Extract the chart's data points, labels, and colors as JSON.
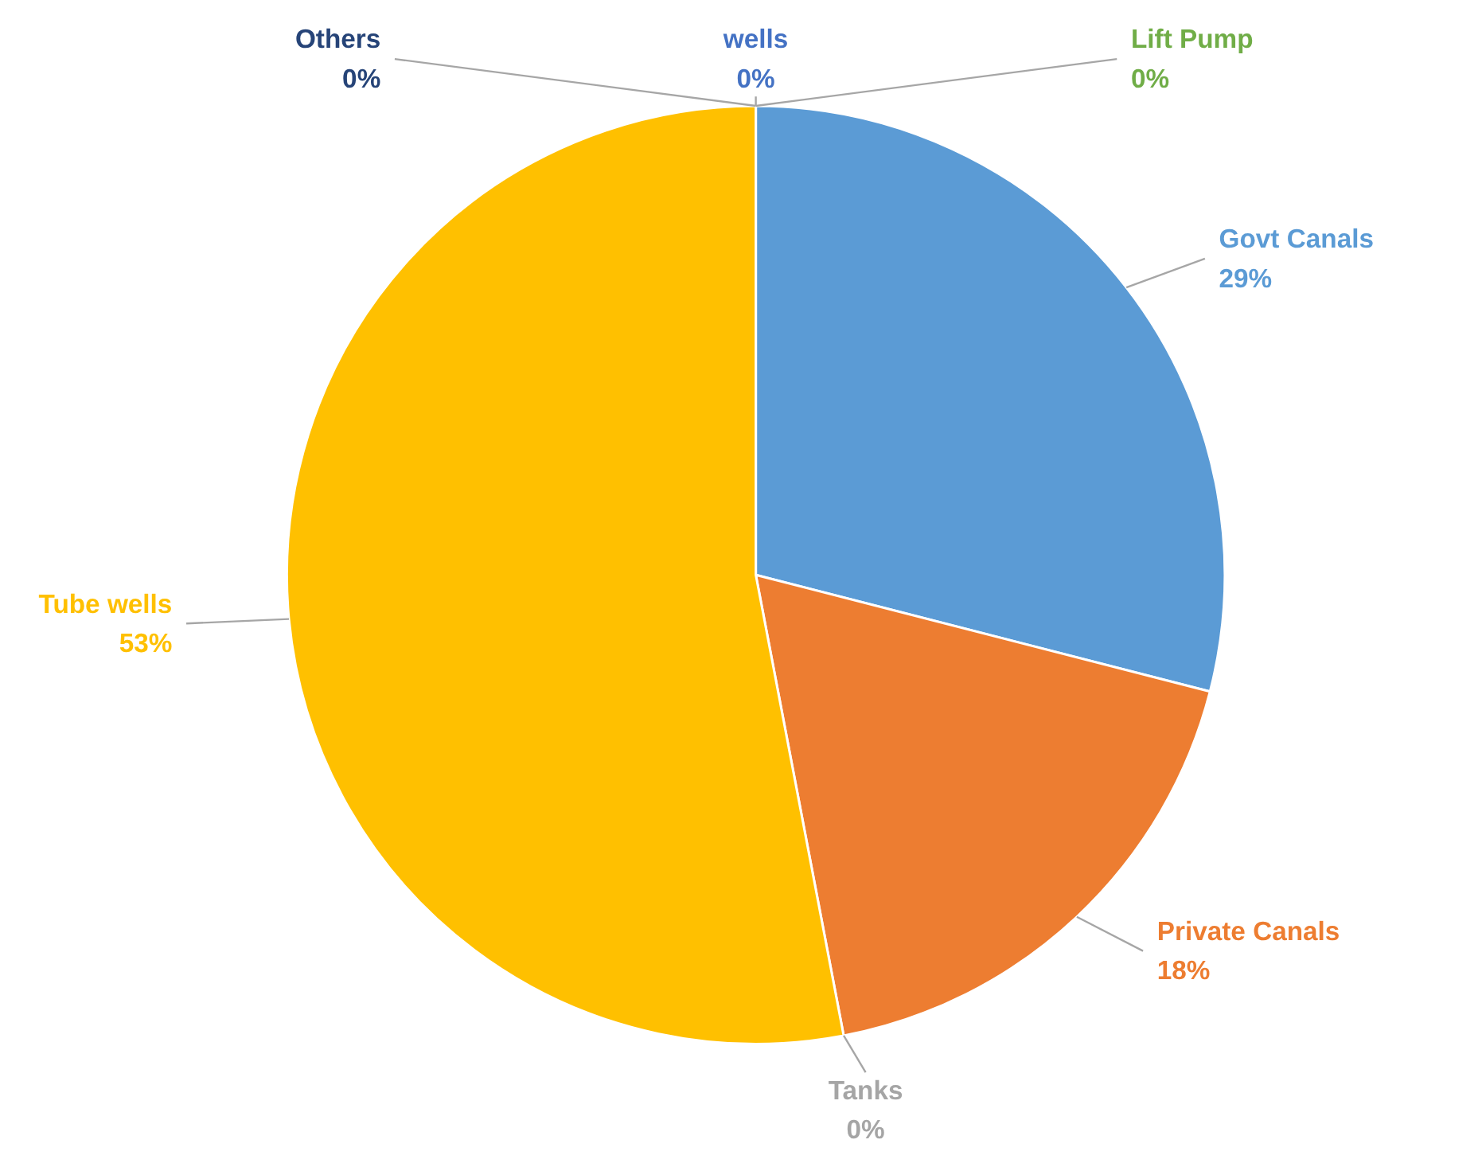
{
  "chart_data": {
    "type": "pie",
    "categories": [
      "Govt Canals",
      "Private Canals",
      "Tanks",
      "Tube wells",
      "Others",
      "wells",
      "Lift Pump"
    ],
    "values": [
      29,
      18,
      0,
      53,
      0,
      0,
      0
    ],
    "colors": [
      "#5b9bd5",
      "#ed7d31",
      "#a5a5a5",
      "#ffc000",
      "#264478",
      "#4472c4",
      "#70ad47"
    ],
    "value_labels": [
      "29%",
      "18%",
      "0%",
      "53%",
      "0%",
      "0%",
      "0%"
    ]
  }
}
